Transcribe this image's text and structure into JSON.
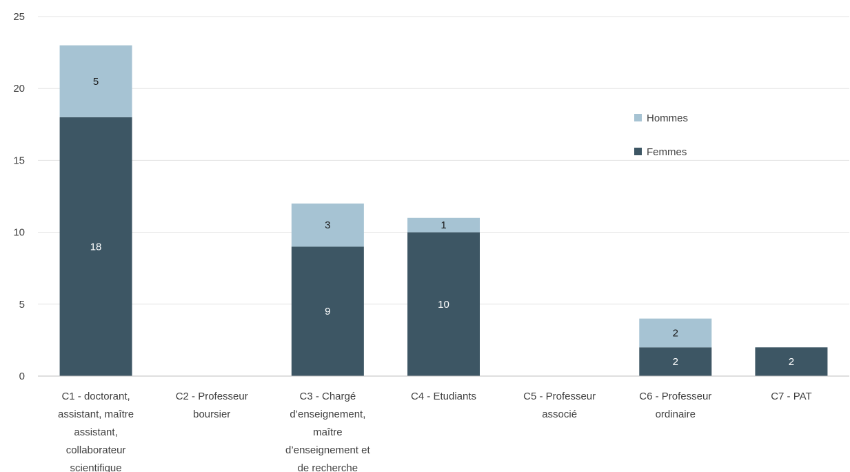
{
  "chart_data": {
    "type": "bar",
    "stacked": true,
    "title": "",
    "xlabel": "",
    "ylabel": "",
    "ylim": [
      0,
      25
    ],
    "yticks": [
      0,
      5,
      10,
      15,
      20,
      25
    ],
    "grid": true,
    "legend_position": "right",
    "categories": [
      [
        "C1 - doctorant,",
        "assistant, maître",
        "assistant,",
        "collaborateur",
        "scientifique"
      ],
      [
        "C2 - Professeur",
        "boursier"
      ],
      [
        "C3 - Chargé",
        "d’enseignement,",
        "maître",
        "d’enseignement et",
        "de recherche"
      ],
      [
        "C4 - Etudiants"
      ],
      [
        "C5 - Professeur",
        "associé"
      ],
      [
        "C6 - Professeur",
        "ordinaire"
      ],
      [
        "C7 - PAT"
      ]
    ],
    "series": [
      {
        "name": "Femmes",
        "color": "#3d5664",
        "label_color": "#ffffff",
        "values": [
          18,
          0,
          9,
          10,
          0,
          2,
          2
        ]
      },
      {
        "name": "Hommes",
        "color": "#a6c3d3",
        "label_color": "#1a1a1a",
        "values": [
          5,
          0,
          3,
          1,
          0,
          2,
          0
        ]
      }
    ],
    "legend_order": [
      "Hommes",
      "Femmes"
    ]
  }
}
